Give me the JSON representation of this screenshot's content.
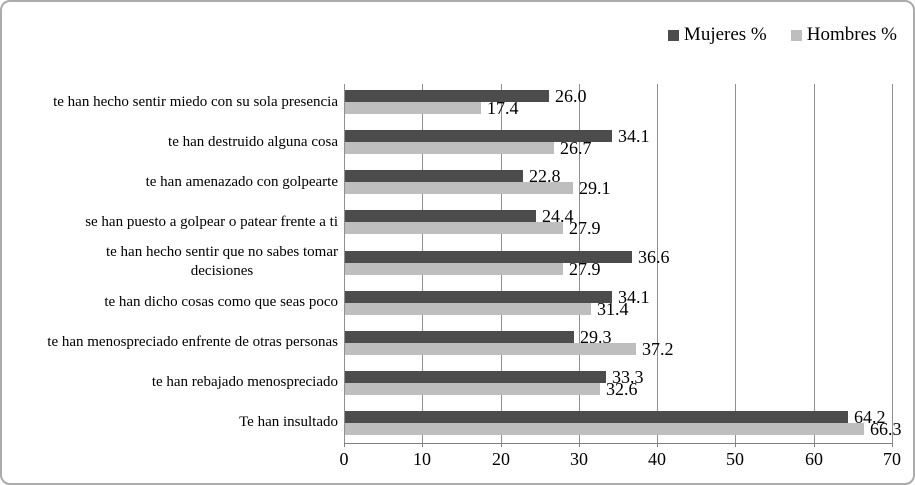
{
  "legend": {
    "series": [
      {
        "label": "Mujeres %",
        "color": "#4c4c4c"
      },
      {
        "label": "Hombres %",
        "color": "#bebebe"
      }
    ]
  },
  "chart_data": {
    "type": "bar",
    "orientation": "horizontal",
    "title": "",
    "xlabel": "",
    "ylabel": "",
    "categories": [
      "te han hecho sentir miedo con su sola presencia",
      "te han destruido alguna cosa",
      "te han amenazado con golpearte",
      "se han puesto a golpear o patear frente a ti",
      "te han hecho sentir que no sabes tomar\ndecisiones",
      "te han dicho cosas como que seas poco",
      "te han menospreciado enfrente de otras personas",
      "te han rebajado menospreciado",
      "Te han insultado"
    ],
    "series": [
      {
        "name": "Mujeres %",
        "color": "#4c4c4c",
        "values": [
          26.0,
          34.1,
          22.8,
          24.4,
          36.6,
          34.1,
          29.3,
          33.3,
          64.2
        ]
      },
      {
        "name": "Hombres %",
        "color": "#bebebe",
        "values": [
          17.4,
          26.7,
          29.1,
          27.9,
          27.9,
          31.4,
          37.2,
          32.6,
          66.3
        ]
      }
    ],
    "xlim": [
      0,
      70
    ],
    "xticks": [
      0,
      10,
      20,
      30,
      40,
      50,
      60,
      70
    ],
    "grid": true,
    "legend_position": "top-right",
    "value_labels": "one-decimal"
  },
  "style_colors": {
    "gridline": "#8f8f8f",
    "axis_line": "#808080",
    "frame_border": "#ababab",
    "text": "#000000"
  }
}
